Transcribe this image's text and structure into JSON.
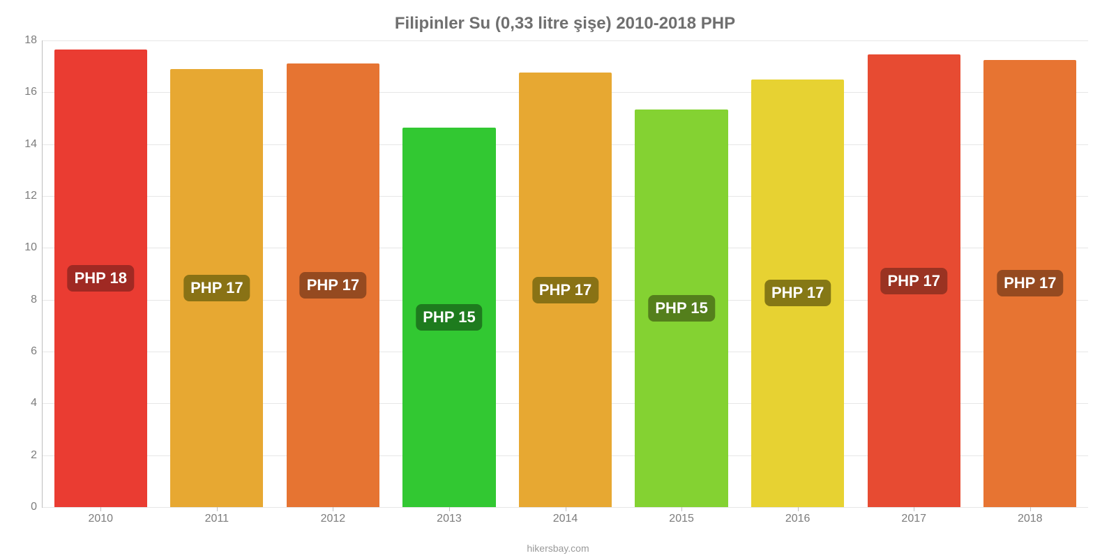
{
  "chart": {
    "type": "bar",
    "title": "Filipinler Su (0,33 litre şişe) 2010-2018 PHP",
    "title_fontsize": 24,
    "title_color": "#6f6f6f",
    "attribution": "hikersbay.com",
    "attribution_color": "#9a9a9a",
    "background_color": "#ffffff",
    "grid_color": "#e6e6e6",
    "axis_border_color": "#bdbdbd",
    "tick_label_color": "#7c7c7c",
    "tick_label_fontsize": 16,
    "bar_label_fontsize": 22,
    "y": {
      "min": 0,
      "max": 18,
      "ticks": [
        0,
        2,
        4,
        6,
        8,
        10,
        12,
        14,
        16,
        18
      ]
    },
    "bars": [
      {
        "x": "2010",
        "value": 17.65,
        "label": "PHP 18",
        "color": "#ea3c32",
        "label_bg": "#a02923",
        "label_top_pct": 50
      },
      {
        "x": "2011",
        "value": 16.9,
        "label": "PHP 17",
        "color": "#e7a832",
        "label_bg": "#897215",
        "label_top_pct": 50
      },
      {
        "x": "2012",
        "value": 17.1,
        "label": "PHP 17",
        "color": "#e67432",
        "label_bg": "#954a20",
        "label_top_pct": 50
      },
      {
        "x": "2013",
        "value": 14.65,
        "label": "PHP 15",
        "color": "#32c832",
        "label_bg": "#1e7b1e",
        "label_top_pct": 50
      },
      {
        "x": "2014",
        "value": 16.75,
        "label": "PHP 17",
        "color": "#e7a832",
        "label_bg": "#897215",
        "label_top_pct": 50
      },
      {
        "x": "2015",
        "value": 15.35,
        "label": "PHP 15",
        "color": "#84d232",
        "label_bg": "#547f1c",
        "label_top_pct": 50
      },
      {
        "x": "2016",
        "value": 16.5,
        "label": "PHP 17",
        "color": "#e7d232",
        "label_bg": "#857815",
        "label_top_pct": 50
      },
      {
        "x": "2017",
        "value": 17.45,
        "label": "PHP 17",
        "color": "#e74b32",
        "label_bg": "#9a3322",
        "label_top_pct": 50
      },
      {
        "x": "2018",
        "value": 17.25,
        "label": "PHP 17",
        "color": "#e77432",
        "label_bg": "#954a20",
        "label_top_pct": 50
      }
    ]
  }
}
